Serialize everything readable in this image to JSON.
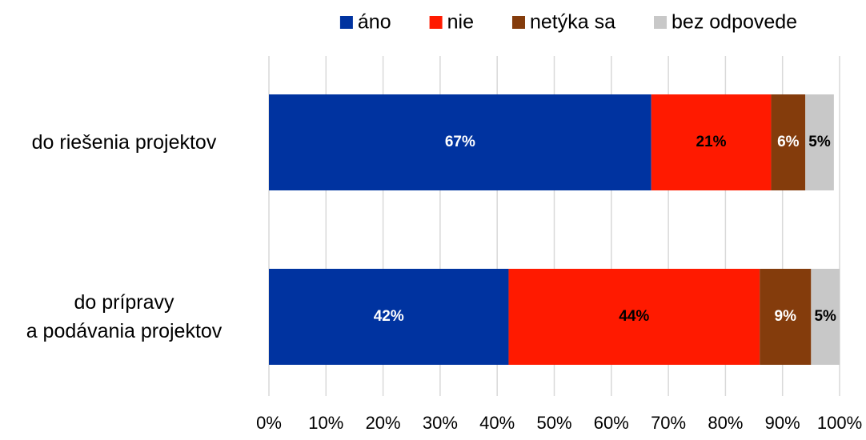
{
  "chart_data": {
    "type": "stacked-bar-horizontal",
    "categories": [
      "do riešenia projektov",
      "do prípravy\na podávania projektov"
    ],
    "series": [
      {
        "name": "áno",
        "color": "#0033a0",
        "label_color": "#ffffff",
        "values": [
          67,
          42
        ],
        "value_labels": [
          "67%",
          "42%"
        ]
      },
      {
        "name": "nie",
        "color": "#ff1a00",
        "label_color": "#000000",
        "values": [
          21,
          44
        ],
        "value_labels": [
          "21%",
          "44%"
        ]
      },
      {
        "name": "netýka sa",
        "color": "#843c0c",
        "label_color": "#ffffff",
        "values": [
          6,
          9
        ],
        "value_labels": [
          "6%",
          "9%"
        ]
      },
      {
        "name": "bez odpovede",
        "color": "#c8c8c8",
        "label_color": "#000000",
        "values": [
          5,
          5
        ],
        "value_labels": [
          "5%",
          "5%"
        ]
      }
    ],
    "xlim": [
      0,
      100
    ],
    "xticks": [
      {
        "value": 0,
        "label": "0%"
      },
      {
        "value": 10,
        "label": "10%"
      },
      {
        "value": 20,
        "label": "20%"
      },
      {
        "value": 30,
        "label": "30%"
      },
      {
        "value": 40,
        "label": "40%"
      },
      {
        "value": 50,
        "label": "50%"
      },
      {
        "value": 60,
        "label": "60%"
      },
      {
        "value": 70,
        "label": "70%"
      },
      {
        "value": 80,
        "label": "80%"
      },
      {
        "value": 90,
        "label": "90%"
      },
      {
        "value": 100,
        "label": "100%"
      }
    ],
    "grid": true,
    "legend": "top"
  }
}
